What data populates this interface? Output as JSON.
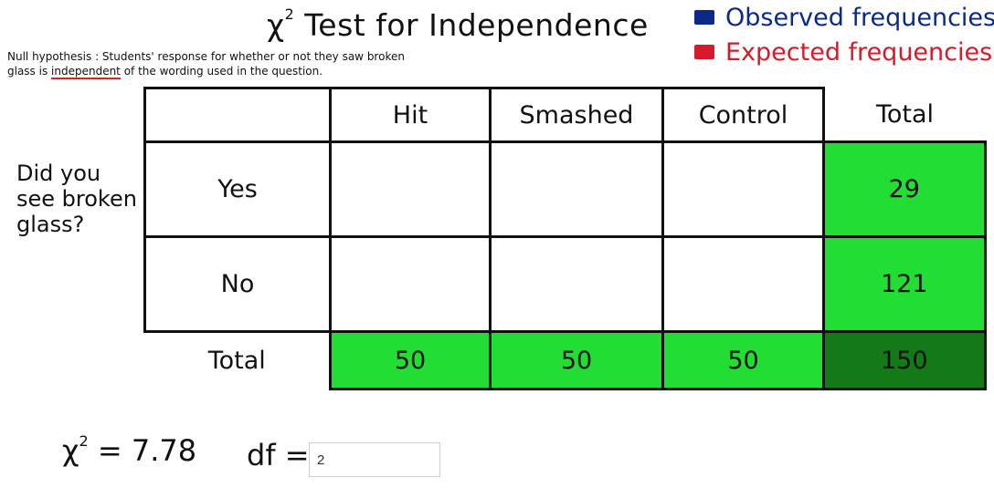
{
  "title": {
    "symbol": "χ",
    "sup": "2",
    "text": "Test for Independence"
  },
  "null_hypothesis": {
    "line1": "Null hypothesis : Students' response for whether or not they saw broken",
    "line2_pre": "glass is ",
    "line2_underlined": "independent",
    "line2_post": " of the wording used in the question."
  },
  "legend": {
    "observed": {
      "label": "Observed frequencies",
      "color": "#0b2a86"
    },
    "expected": {
      "label": "Expected frequencies",
      "color": "#d51a2a"
    }
  },
  "question": {
    "line1": "Did you",
    "line2": "see broken",
    "line3": "glass?"
  },
  "table": {
    "columns": [
      "Hit",
      "Smashed",
      "Control",
      "Total"
    ],
    "rows": [
      {
        "label": "Yes",
        "total": "29"
      },
      {
        "label": "No",
        "total": "121"
      }
    ],
    "total_label": "Total",
    "column_totals": [
      "50",
      "50",
      "50"
    ],
    "grand_total": "150"
  },
  "chi_square": {
    "symbol": "χ",
    "sup": "2",
    "text": "= 7.78"
  },
  "df": {
    "label": "df =",
    "value": "2"
  }
}
